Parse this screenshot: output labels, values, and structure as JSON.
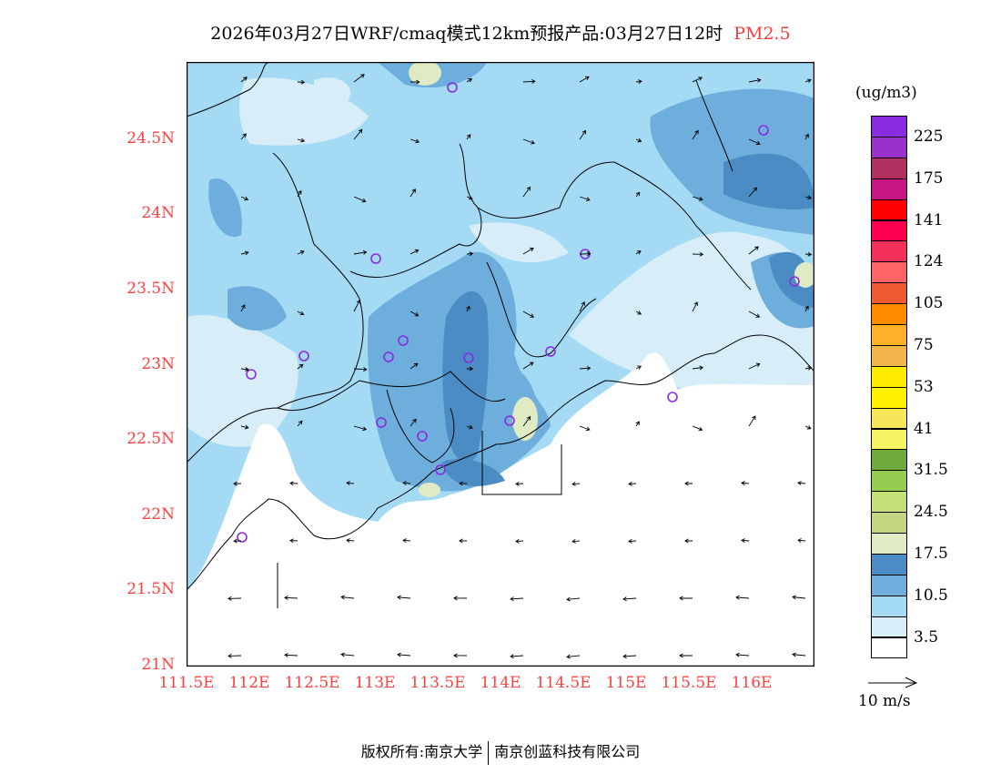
{
  "title": {
    "text": "2026年03月27日WRF/cmaq模式12km预报产品:03月27日12时",
    "pollutant": "PM2.5"
  },
  "axes": {
    "lat_labels": [
      "24.5N",
      "24N",
      "23.5N",
      "23N",
      "22.5N",
      "22N",
      "21.5N",
      "21N"
    ],
    "lat_values": [
      24.5,
      24,
      23.5,
      23,
      22.5,
      22,
      21.5,
      21
    ],
    "lon_labels": [
      "111.5E",
      "112E",
      "112.5E",
      "113E",
      "113.5E",
      "114E",
      "114.5E",
      "115E",
      "115.5E",
      "116E"
    ],
    "lon_values": [
      111.5,
      112,
      112.5,
      113,
      113.5,
      114,
      114.5,
      115,
      115.5,
      116
    ]
  },
  "legend": {
    "unit": "(ug/m3)",
    "colors": [
      "#8a2be2",
      "#9932cc",
      "#b0305f",
      "#c71585",
      "#ff0000",
      "#ff0050",
      "#f5305a",
      "#ff6464",
      "#f05a32",
      "#ff8c00",
      "#ffaf28",
      "#f5b44b",
      "#ffeb00",
      "#fff000",
      "#f5e65a",
      "#f5f564",
      "#6eaa3c",
      "#96cd50",
      "#c3e178",
      "#c3d782",
      "#e1ebc3",
      "#4a8cc3",
      "#6eaedc",
      "#a5daf5",
      "#d7eef8",
      "#ffffff"
    ],
    "labels": [
      "225",
      "175",
      "141",
      "124",
      "105",
      "75",
      "53",
      "41",
      "31.5",
      "24.5",
      "17.5",
      "10.5",
      "3.5"
    ]
  },
  "wind_reference": "10 m/s",
  "footer": {
    "left": "版权所有:南京大学",
    "right": "南京创蓝科技有限公司"
  }
}
